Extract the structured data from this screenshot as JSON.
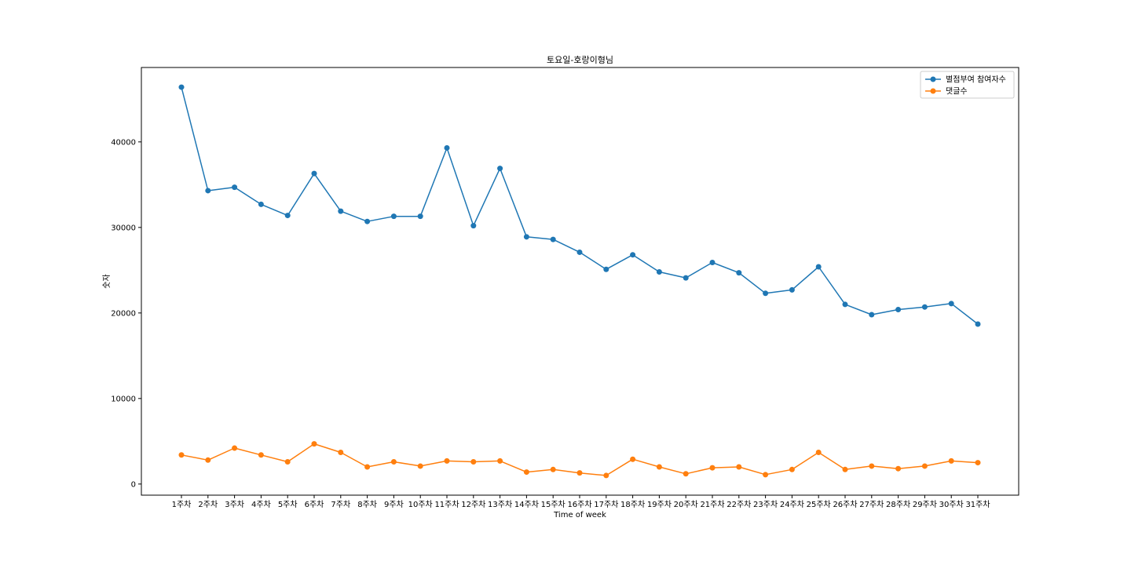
{
  "chart_data": {
    "type": "line",
    "title": "토요일-호랑이형님",
    "xlabel": "Time of week",
    "ylabel": "숫자",
    "categories": [
      "1주차",
      "2주차",
      "3주차",
      "4주차",
      "5주차",
      "6주차",
      "7주차",
      "8주차",
      "9주차",
      "10주차",
      "11주차",
      "12주차",
      "13주차",
      "14주차",
      "15주차",
      "16주차",
      "17주차",
      "18주차",
      "19주차",
      "20주차",
      "21주차",
      "22주차",
      "23주차",
      "24주차",
      "25주차",
      "26주차",
      "27주차",
      "28주차",
      "29주차",
      "30주차",
      "31주차"
    ],
    "yticks": [
      0,
      10000,
      20000,
      30000,
      40000
    ],
    "ylim": [
      -1300,
      48700
    ],
    "grid": false,
    "legend_position": "top-right",
    "series": [
      {
        "name": "별점부여 참여자수",
        "color": "#1f77b4",
        "values": [
          46400,
          34300,
          34700,
          32700,
          31400,
          36300,
          31900,
          30700,
          31300,
          31300,
          39300,
          30200,
          36900,
          28900,
          28600,
          27100,
          25100,
          26800,
          24800,
          24100,
          25900,
          24700,
          22300,
          22700,
          25400,
          21000,
          19800,
          20400,
          20700,
          21100,
          18700
        ]
      },
      {
        "name": "댓글수",
        "color": "#ff7f0e",
        "values": [
          3400,
          2800,
          4200,
          3400,
          2600,
          4700,
          3700,
          2000,
          2600,
          2100,
          2700,
          2600,
          2700,
          1400,
          1700,
          1300,
          1000,
          2900,
          2000,
          1200,
          1900,
          2000,
          1100,
          1700,
          3700,
          1700,
          2100,
          1800,
          2100,
          2700,
          2500
        ]
      }
    ]
  }
}
